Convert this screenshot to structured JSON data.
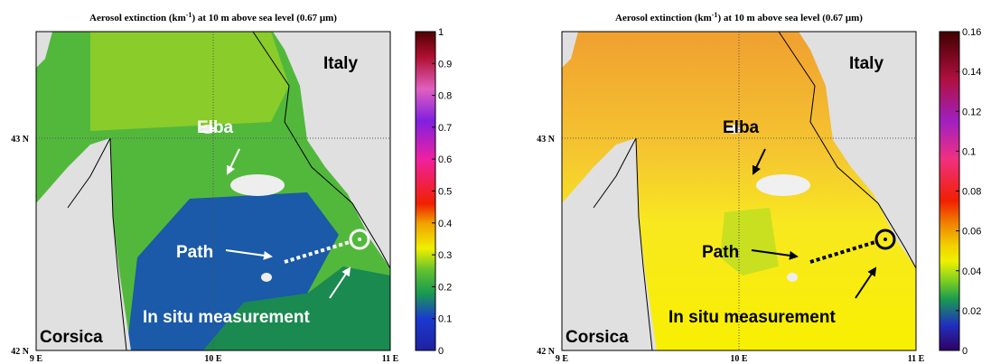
{
  "panels": [
    {
      "title": {
        "text": "Aerosol extinction (km",
        "superscript": "-1",
        "suffix": ") at 10 m above sea level (0.67 μm)"
      },
      "labels": {
        "italy": "Italy",
        "elba": "Elba",
        "path": "Path",
        "measurement": "In situ measurement",
        "corsica": "Corsica"
      },
      "lat_labels": [
        "43 N",
        "42 N"
      ],
      "lon_labels": [
        "9 E",
        "10 E",
        "11 E"
      ],
      "colorbar_ticks": [
        0,
        0.1,
        0.2,
        0.3,
        0.4,
        0.5,
        0.6,
        0.7,
        0.8,
        0.9,
        1
      ]
    },
    {
      "title": {
        "text": "Aerosol extinction (km",
        "superscript": "-1",
        "suffix": ") at 10 m above sea level (0.67 μm)"
      },
      "labels": {
        "italy": "Italy",
        "elba": "Elba",
        "path": "Path",
        "measurement": "In situ measurement",
        "corsica": "Corsica"
      },
      "lat_labels": [
        "43 N",
        "42 N"
      ],
      "lon_labels": [
        "9 E",
        "10 E",
        "11 E"
      ],
      "colorbar_ticks": [
        0,
        0.02,
        0.04,
        0.06,
        0.08,
        0.1,
        0.12,
        0.14,
        0.16
      ]
    }
  ]
}
